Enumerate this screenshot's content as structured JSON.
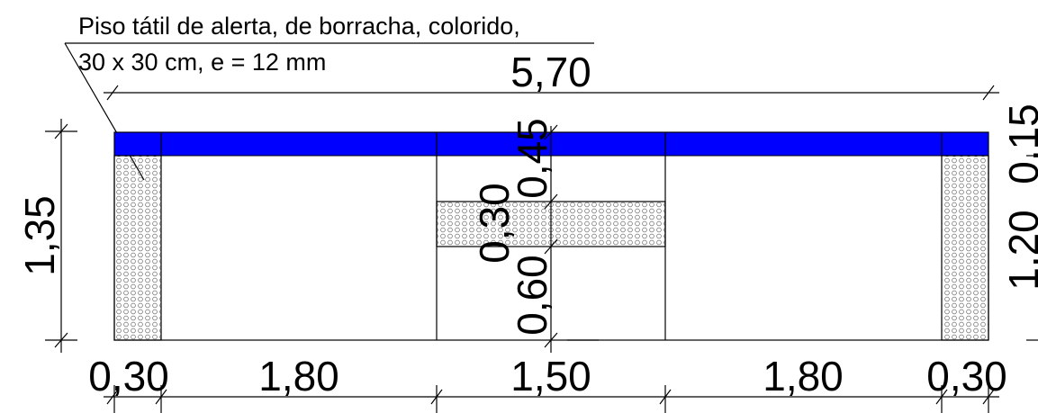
{
  "annotation": {
    "line1": "Piso tátil de alerta, de borracha, colorido,",
    "line2": "30 x 30 cm, e = 12 mm"
  },
  "dimensions": {
    "overall_width": "5,70",
    "left_height": "1,35",
    "right_upper": "0,15",
    "right_lower": "1,20",
    "center_top": "0,45",
    "center_mid": "0,30",
    "center_bottom": "0,60",
    "bottom": [
      "0,30",
      "1,80",
      "1,50",
      "1,80",
      "0,30"
    ]
  },
  "colors": {
    "blue_band": "#0000ff",
    "line": "#000000",
    "background": "#ffffff"
  }
}
